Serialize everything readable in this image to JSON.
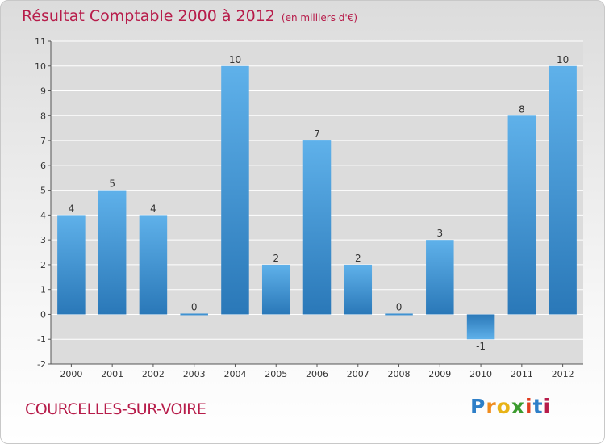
{
  "header": {
    "title": "Résultat Comptable 2000 à 2012",
    "unit": "(en milliers d'€)"
  },
  "footer": {
    "town": "COURCELLES-SUR-VOIRE",
    "logo_letters": [
      "P",
      "r",
      "o",
      "x",
      "i",
      "t",
      "i"
    ]
  },
  "colors": {
    "title": "#b71c4a",
    "bar_light": "#5fb1ea",
    "bar_dark": "#2a78b8",
    "plot_bg": "#dcdcdc"
  },
  "chart_data": {
    "type": "bar",
    "title": "Résultat Comptable 2000 à 2012",
    "subtitle": "(en milliers d'€)",
    "xlabel": "",
    "ylabel": "",
    "categories": [
      "2000",
      "2001",
      "2002",
      "2003",
      "2004",
      "2005",
      "2006",
      "2007",
      "2008",
      "2009",
      "2010",
      "2011",
      "2012"
    ],
    "values": [
      4,
      5,
      4,
      0,
      10,
      2,
      7,
      2,
      0,
      3,
      -1,
      8,
      10
    ],
    "data_labels": [
      "4",
      "5",
      "4",
      "0",
      "10",
      "2",
      "7",
      "2",
      "0",
      "3",
      "-1",
      "8",
      "10"
    ],
    "y_ticks": [
      "-2",
      "-1",
      "0",
      "1",
      "2",
      "3",
      "4",
      "5",
      "6",
      "7",
      "8",
      "9",
      "10",
      "11"
    ],
    "ylim": [
      -2,
      11
    ],
    "grid": true,
    "legend": "none"
  }
}
